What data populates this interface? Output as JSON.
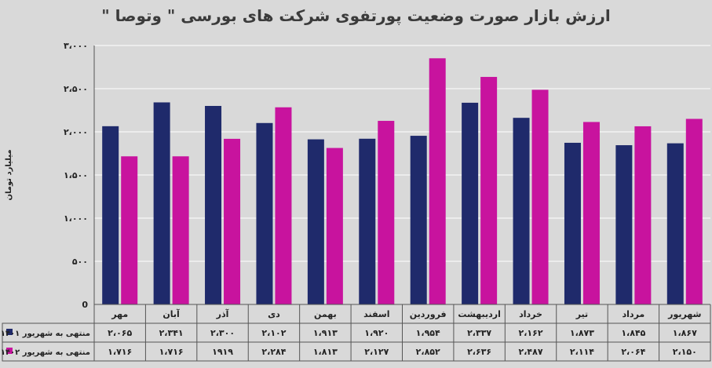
{
  "chart_data": {
    "type": "bar",
    "title": "ارزش بازار صورت وضعیت پورتفوی شرکت های بورسی \" وتوصا \"",
    "ylabel": "میلیارد تومان",
    "ylim": [
      0,
      3000
    ],
    "yticks": [
      0,
      500,
      1000,
      1500,
      2000,
      2500,
      3000
    ],
    "ytick_labels": [
      "0",
      "۵۰۰",
      "۱،۰۰۰",
      "۱،۵۰۰",
      "۲،۰۰۰",
      "۲،۵۰۰",
      "۳،۰۰۰"
    ],
    "categories": [
      "مهر",
      "آبان",
      "آذر",
      "دی",
      "بهمن",
      "اسفند",
      "فروردین",
      "اردیبهشت",
      "خرداد",
      "تیر",
      "مرداد",
      "شهریور"
    ],
    "series": [
      {
        "name": "منتهی به شهریور ۱۴۰۱",
        "color": "#1f2a6b",
        "values": [
          2065,
          2341,
          2300,
          2102,
          1913,
          1920,
          1954,
          2337,
          2162,
          1873,
          1845,
          1867
        ],
        "labels": [
          "۲،۰۶۵",
          "۲،۳۴۱",
          "۲،۳۰۰",
          "۲،۱۰۲",
          "۱،۹۱۳",
          "۱،۹۲۰",
          "۱،۹۵۴",
          "۲،۳۳۷",
          "۲،۱۶۲",
          "۱،۸۷۳",
          "۱،۸۴۵",
          "۱،۸۶۷"
        ]
      },
      {
        "name": "منتهی به شهریور ۱۴۰۲",
        "color": "#c8139e",
        "values": [
          1716,
          1716,
          1919,
          2284,
          1813,
          2127,
          2852,
          2636,
          2487,
          2114,
          2064,
          2150
        ],
        "labels": [
          "۱،۷۱۶",
          "۱،۷۱۶",
          "۱۹۱۹",
          "۲،۲۸۴",
          "۱،۸۱۳",
          "۲،۱۲۷",
          "۲،۸۵۲",
          "۲،۶۳۶",
          "۲،۴۸۷",
          "۲،۱۱۴",
          "۲،۰۶۴",
          "۲،۱۵۰"
        ]
      }
    ],
    "gridlines": true,
    "legend": "data-table-left"
  }
}
